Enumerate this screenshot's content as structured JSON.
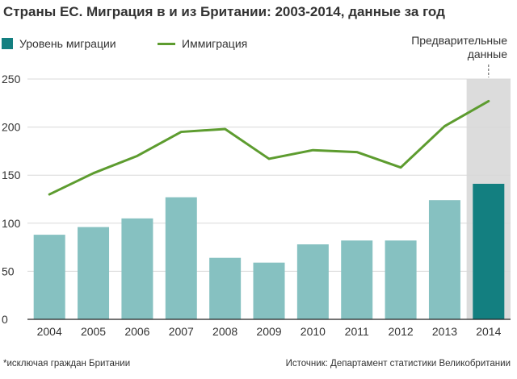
{
  "title": "Страны ЕС. Миграция в и из Британии: 2003-2014, данные за год",
  "legend": {
    "bars_label": "Уровень миграции",
    "line_label": "Иммиграция"
  },
  "preliminary_label": "Предварительные данные",
  "footnote": "*исключая граждан Британии",
  "source": "Источник: Департамент статистики Великобритании",
  "colors": {
    "bar": "#86c1c1",
    "bar_highlight": "#137f80",
    "line": "#5d9c2f",
    "shade": "#dcdcdc",
    "grid": "#d8d8d8"
  },
  "chart_data": {
    "type": "bar",
    "categories": [
      "2004",
      "2005",
      "2006",
      "2007",
      "2008",
      "2009",
      "2010",
      "2011",
      "2012",
      "2013",
      "2014"
    ],
    "series": [
      {
        "name": "Уровень миграции",
        "type": "bar",
        "values": [
          88,
          96,
          105,
          127,
          64,
          59,
          78,
          82,
          82,
          124,
          141
        ]
      },
      {
        "name": "Иммиграция",
        "type": "line",
        "values": [
          130,
          152,
          170,
          195,
          198,
          167,
          176,
          174,
          158,
          201,
          227
        ]
      }
    ],
    "highlight_category": "2014",
    "shaded_region": "2014",
    "ylim": [
      0,
      250
    ],
    "yticks": [
      0,
      50,
      100,
      150,
      200,
      250
    ],
    "grid": true,
    "legend_position": "top-left"
  }
}
